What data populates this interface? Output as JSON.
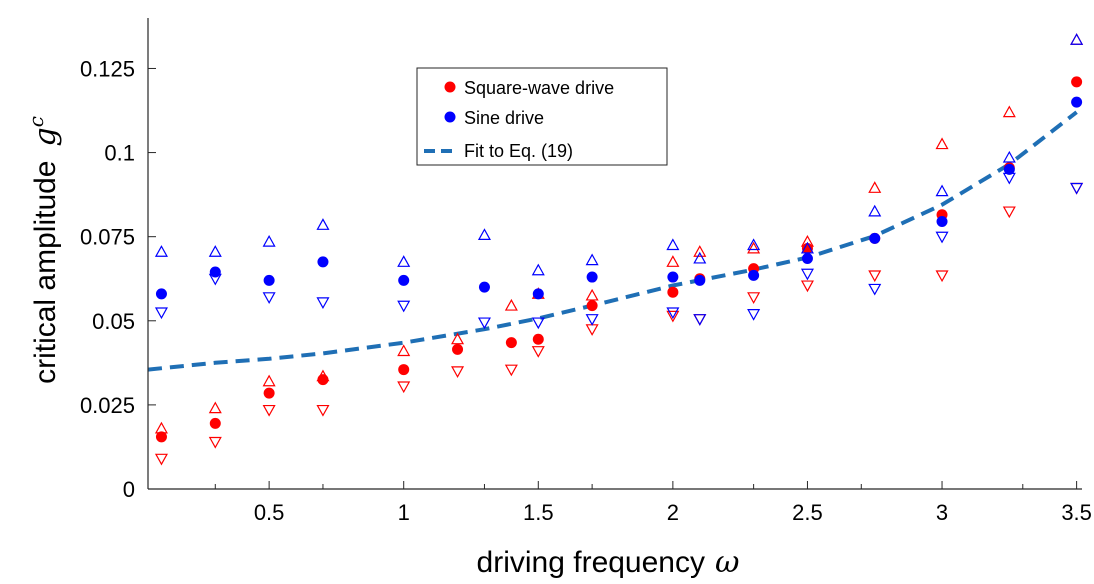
{
  "chart_data": {
    "type": "scatter",
    "xlabel": "driving frequency",
    "xlabel_symbol": "ω",
    "ylabel": "critical amplitude",
    "ylabel_symbol": "g",
    "ylabel_superscript": "c",
    "xlim": [
      0.05,
      3.52
    ],
    "ylim": [
      0,
      0.14
    ],
    "x_ticks": [
      0.5,
      1,
      1.5,
      2,
      2.5,
      3,
      3.5
    ],
    "x_tick_labels": [
      "0.5",
      "1",
      "1.5",
      "2",
      "2.5",
      "3",
      "3.5"
    ],
    "x_minor_ticks": [
      0.3,
      0.7,
      1.3,
      1.7,
      2.3,
      2.7,
      3.3
    ],
    "y_ticks": [
      0,
      0.025,
      0.05,
      0.075,
      0.1,
      0.125
    ],
    "y_tick_labels": [
      "0",
      "0.025",
      "0.05",
      "0.075",
      "0.1",
      "0.125"
    ],
    "grid": false,
    "legend_position": "top-center",
    "legend": [
      {
        "label": "Square-wave drive",
        "marker": "dot",
        "color": "#ff0000"
      },
      {
        "label": "Sine drive",
        "marker": "dot",
        "color": "#0000ff"
      },
      {
        "label": "Fit to Eq. (19)",
        "marker": "dashed-line",
        "color": "#1f6fb5"
      }
    ],
    "series": [
      {
        "name": "Square-wave drive",
        "color": "#ff0000",
        "x": [
          0.1,
          0.3,
          0.5,
          0.7,
          1.0,
          1.2,
          1.4,
          1.5,
          1.7,
          2.0,
          2.1,
          2.3,
          2.5,
          2.75,
          3.0,
          3.25,
          3.5
        ],
        "y": [
          0.0155,
          0.0195,
          0.0285,
          0.0325,
          0.0355,
          0.0415,
          0.0435,
          0.0445,
          0.0545,
          0.0585,
          0.0625,
          0.0655,
          0.0715,
          0.0745,
          0.0815,
          0.0955,
          0.121
        ],
        "upper": [
          0.018,
          0.024,
          0.032,
          0.0335,
          0.041,
          0.0445,
          0.0545,
          0.058,
          0.0575,
          0.0675,
          0.0705,
          0.0715,
          0.0735,
          0.0895,
          0.1025,
          0.112,
          0.1335
        ],
        "lower": [
          0.009,
          0.014,
          0.0235,
          0.0235,
          0.0305,
          0.035,
          0.0355,
          0.041,
          0.0475,
          0.0515,
          0.0505,
          0.057,
          0.0605,
          0.0635,
          0.0635,
          0.0825,
          0.0895
        ]
      },
      {
        "name": "Sine drive",
        "color": "#0000ff",
        "x": [
          0.1,
          0.3,
          0.5,
          0.7,
          1.0,
          1.3,
          1.5,
          1.7,
          2.0,
          2.1,
          2.3,
          2.5,
          2.75,
          3.0,
          3.25,
          3.5
        ],
        "y": [
          0.058,
          0.0645,
          0.062,
          0.0675,
          0.062,
          0.06,
          0.058,
          0.063,
          0.063,
          0.062,
          0.0635,
          0.0685,
          0.0745,
          0.0795,
          0.095,
          0.115
        ],
        "upper": [
          0.0705,
          0.0705,
          0.0735,
          0.0785,
          0.0675,
          0.0755,
          0.065,
          0.068,
          0.0725,
          0.0685,
          0.0725,
          0.0715,
          0.0825,
          0.0885,
          0.0985,
          0.1335
        ],
        "lower": [
          0.0525,
          0.0625,
          0.057,
          0.0555,
          0.0545,
          0.0495,
          0.0495,
          0.0505,
          0.0525,
          0.0505,
          0.052,
          0.064,
          0.0595,
          0.075,
          0.0925,
          0.0895
        ]
      }
    ],
    "fit": {
      "name": "Fit to Eq. (19)",
      "color": "#1f6fb5",
      "x": [
        0.05,
        0.3,
        0.5,
        0.7,
        1.0,
        1.3,
        1.5,
        1.7,
        2.0,
        2.3,
        2.5,
        2.75,
        3.0,
        3.25,
        3.5
      ],
      "y": [
        0.0355,
        0.0375,
        0.0387,
        0.0403,
        0.0435,
        0.0475,
        0.0507,
        0.0545,
        0.0605,
        0.0652,
        0.0688,
        0.0752,
        0.0845,
        0.0965,
        0.112
      ]
    }
  }
}
